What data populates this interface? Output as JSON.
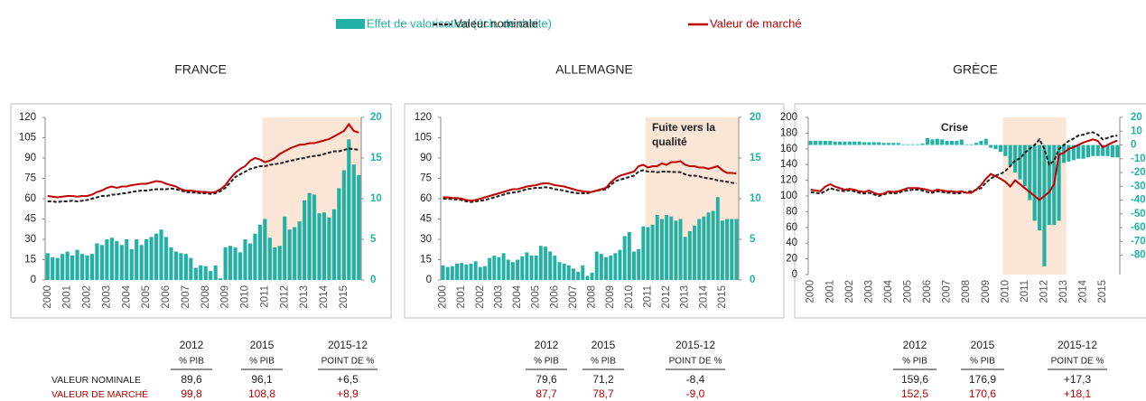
{
  "chart_data": [
    {
      "type": "combo",
      "title": "FRANCE",
      "categories": [
        "2000",
        null,
        null,
        null,
        "2001",
        null,
        null,
        null,
        "2002",
        null,
        null,
        null,
        "2003",
        null,
        null,
        null,
        "2004",
        null,
        null,
        null,
        "2005",
        null,
        null,
        null,
        "2006",
        null,
        null,
        null,
        "2007",
        null,
        null,
        null,
        "2008",
        null,
        null,
        null,
        "2009",
        null,
        null,
        null,
        "2010",
        null,
        null,
        null,
        "2011",
        null,
        null,
        null,
        "2012",
        null,
        null,
        null,
        "2013",
        null,
        null,
        null,
        "2014",
        null,
        null,
        null,
        "2015",
        null,
        null,
        null
      ],
      "ylim": [
        0,
        120
      ],
      "yticks": [
        0,
        15,
        30,
        45,
        60,
        75,
        90,
        105,
        120
      ],
      "y2lim": [
        0,
        20
      ],
      "y2ticks": [
        0,
        5,
        10,
        15,
        20
      ],
      "series": [
        {
          "name": "Effet de valorisation (éch. de droite)",
          "type": "bar",
          "axis": "y2",
          "color": "#22b2a5",
          "values": [
            3.3,
            2.8,
            2.7,
            3.2,
            3.5,
            3.0,
            3.7,
            3.2,
            3.0,
            3.2,
            4.5,
            4.3,
            5.0,
            5.2,
            4.8,
            4.3,
            5.0,
            3.8,
            5.0,
            4.3,
            5.0,
            5.3,
            5.7,
            6.2,
            5.3,
            4.0,
            3.5,
            3.3,
            3.2,
            2.7,
            1.5,
            1.8,
            1.7,
            1.1,
            1.8,
            0.2,
            4.0,
            4.2,
            4.0,
            3.4,
            5.0,
            4.5,
            5.7,
            6.8,
            7.5,
            5.2,
            4.0,
            4.2,
            7.8,
            6.2,
            6.5,
            7.2,
            9.8,
            10.7,
            10.5,
            8.2,
            8.3,
            7.7,
            8.7,
            11.3,
            13.5,
            17.3,
            14.2,
            12.9
          ]
        },
        {
          "name": "Valeur nominale",
          "type": "line",
          "dash": true,
          "color": "#222222",
          "values": [
            58,
            58,
            57.5,
            58,
            58,
            58.5,
            58,
            58.5,
            59,
            60,
            61,
            62,
            62,
            63,
            63,
            64,
            64,
            65,
            65.5,
            66,
            66,
            66.5,
            67,
            67,
            67,
            67.5,
            67,
            66,
            65,
            64.5,
            64.5,
            64,
            64,
            63.5,
            64,
            65.5,
            68,
            72,
            76,
            78,
            80,
            82,
            83,
            84,
            84,
            85,
            85.5,
            86,
            87,
            88,
            88.5,
            89.6,
            90,
            91,
            91.5,
            92,
            93,
            94,
            95,
            95,
            96,
            97,
            96.5,
            96.1
          ]
        },
        {
          "name": "Valeur de marché",
          "type": "line",
          "color": "#c00000",
          "values": [
            62,
            61.5,
            61,
            61.5,
            62,
            62,
            61.5,
            62,
            62,
            63,
            65,
            66,
            68,
            69,
            68,
            69,
            69,
            70,
            70.5,
            71,
            71,
            72,
            73,
            72.5,
            71,
            70,
            69,
            67,
            66,
            66,
            65.5,
            65,
            65,
            64.5,
            65,
            67,
            70,
            75,
            79,
            82,
            84,
            88,
            90,
            89,
            87,
            88,
            90,
            93,
            95,
            97,
            98.5,
            99.8,
            100,
            101,
            101,
            102,
            103,
            104,
            106,
            108,
            110,
            115,
            110,
            108.8
          ]
        }
      ]
    },
    {
      "type": "combo",
      "title": "ALLEMAGNE",
      "annotation": "Fuite vers la qualité",
      "categories": [
        "2000",
        null,
        null,
        null,
        "2001",
        null,
        null,
        null,
        "2002",
        null,
        null,
        null,
        "2003",
        null,
        null,
        null,
        "2004",
        null,
        null,
        null,
        "2005",
        null,
        null,
        null,
        "2006",
        null,
        null,
        null,
        "2007",
        null,
        null,
        null,
        "2008",
        null,
        null,
        null,
        "2009",
        null,
        null,
        null,
        "2010",
        null,
        null,
        null,
        "2011",
        null,
        null,
        null,
        "2012",
        null,
        null,
        null,
        "2013",
        null,
        null,
        null,
        "2014",
        null,
        null,
        null,
        "2015",
        null,
        null,
        null
      ],
      "ylim": [
        0,
        120
      ],
      "yticks": [
        0,
        15,
        30,
        45,
        60,
        75,
        90,
        105,
        120
      ],
      "y2lim": [
        0,
        20
      ],
      "y2ticks": [
        0,
        5,
        10,
        15,
        20
      ],
      "series": [
        {
          "name": "Effet de valorisation (éch. de droite)",
          "type": "bar",
          "axis": "y2",
          "color": "#22b2a5",
          "values": [
            1.8,
            1.6,
            1.7,
            2.0,
            2.1,
            1.9,
            2.0,
            2.3,
            1.6,
            1.7,
            2.7,
            3.0,
            2.8,
            3.3,
            2.5,
            2.2,
            2.5,
            2.9,
            3.4,
            3.0,
            3.0,
            4.2,
            4.1,
            3.5,
            3.0,
            2.2,
            2.0,
            1.8,
            1.4,
            1.0,
            1.8,
            0.5,
            0.9,
            3.5,
            3.2,
            2.8,
            3.0,
            3.3,
            3.7,
            5.4,
            5.9,
            3.5,
            3.8,
            6.6,
            6.5,
            6.8,
            8.0,
            7.5,
            8.0,
            7.8,
            7.3,
            7.5,
            5.3,
            6.0,
            6.7,
            7.5,
            7.8,
            8.3,
            8.5,
            10.2,
            7.3,
            7.5,
            7.5,
            7.5
          ]
        },
        {
          "name": "Valeur nominale",
          "type": "line",
          "dash": true,
          "color": "#222222",
          "values": [
            60,
            60,
            59.5,
            59.5,
            59,
            58,
            57.5,
            58,
            58.5,
            59,
            60,
            61,
            62,
            63,
            64,
            64.5,
            65,
            66,
            67,
            67.5,
            68,
            68,
            68.5,
            68,
            67,
            66.5,
            66,
            65,
            64.5,
            64,
            64,
            64,
            65,
            66,
            66.5,
            67,
            70,
            73,
            74,
            75,
            76,
            77,
            80,
            81,
            80,
            80,
            79.5,
            80,
            80,
            79.8,
            79.7,
            79.6,
            78,
            77,
            77,
            76.5,
            75.5,
            75,
            74.5,
            73.5,
            73,
            72.5,
            71.8,
            71.2
          ]
        },
        {
          "name": "Valeur de marché",
          "type": "line",
          "color": "#c00000",
          "values": [
            61,
            61,
            60.5,
            60.5,
            60,
            59,
            58.5,
            59,
            60,
            61,
            62,
            63,
            64,
            65,
            66,
            67,
            67,
            68,
            69,
            69.5,
            70,
            71,
            71.5,
            71,
            70,
            69.5,
            69,
            68,
            67,
            66,
            65.5,
            65,
            65,
            66,
            67,
            68,
            72,
            75,
            77,
            78,
            79,
            80,
            84,
            85,
            83,
            84,
            84,
            86,
            85,
            87,
            87,
            87.7,
            85,
            84,
            84,
            83,
            83,
            82,
            83,
            84,
            81,
            79,
            79,
            78.7
          ]
        }
      ]
    },
    {
      "type": "combo",
      "title": "GRÈCE",
      "annotation": "Crise",
      "categories": [
        "2000",
        null,
        null,
        null,
        "2001",
        null,
        null,
        null,
        "2002",
        null,
        null,
        null,
        "2003",
        null,
        null,
        null,
        "2004",
        null,
        null,
        null,
        "2005",
        null,
        null,
        null,
        "2006",
        null,
        null,
        null,
        "2007",
        null,
        null,
        null,
        "2008",
        null,
        null,
        null,
        "2009",
        null,
        null,
        null,
        "2010",
        null,
        null,
        null,
        "2011",
        null,
        null,
        null,
        "2012",
        null,
        null,
        null,
        "2013",
        null,
        null,
        null,
        "2014",
        null,
        null,
        null,
        "2015",
        null,
        null,
        null
      ],
      "ylim": [
        0,
        200
      ],
      "yticks": [
        0,
        20,
        40,
        60,
        80,
        100,
        120,
        140,
        160,
        180,
        200
      ],
      "y2lim": [
        -94,
        20
      ],
      "y2ticks": [
        -80,
        -70,
        -60,
        -50,
        -40,
        -30,
        -20,
        -10,
        0,
        10,
        20
      ],
      "series": [
        {
          "name": "Effet de valorisation (éch. de droite)",
          "type": "bar",
          "axis": "y2",
          "color": "#22b2a5",
          "values": [
            3,
            3,
            3,
            3,
            3,
            2.5,
            2.5,
            2.5,
            2.5,
            2.5,
            2.5,
            2,
            2,
            2,
            2,
            1.5,
            1.5,
            1.5,
            1.5,
            0.5,
            0.5,
            0.5,
            0.5,
            1,
            5,
            4,
            4.5,
            4,
            3,
            3,
            3,
            4,
            0.5,
            0.5,
            1.5,
            3,
            4.5,
            -2,
            -3,
            -5,
            -8,
            -15,
            -20,
            -25,
            -30,
            -40,
            -55,
            -62,
            -88,
            -58,
            -58,
            -55,
            -13,
            -12,
            -11,
            -10,
            -10,
            -9,
            -8,
            -8,
            -8,
            -8,
            -9,
            -9
          ]
        },
        {
          "name": "Valeur nominale",
          "type": "line",
          "dash": true,
          "color": "#222222",
          "values": [
            105,
            104,
            103,
            106,
            110,
            108,
            107,
            106,
            107,
            106,
            104,
            103,
            104,
            102,
            100,
            102,
            104,
            103,
            104,
            106,
            107,
            108,
            108,
            107,
            105,
            104,
            106,
            105,
            104,
            104,
            103,
            104,
            105,
            106,
            108,
            110,
            117,
            122,
            126,
            128,
            132,
            138,
            145,
            148,
            155,
            160,
            165,
            172,
            160,
            140,
            145,
            159.6,
            165,
            170,
            173,
            177,
            178,
            180,
            181,
            178,
            172,
            174,
            176,
            176.9
          ]
        },
        {
          "name": "Valeur de marché",
          "type": "line",
          "color": "#c00000",
          "values": [
            108,
            107,
            106,
            112,
            115,
            112,
            110,
            108,
            109,
            108,
            106,
            105,
            107,
            104,
            102,
            103,
            106,
            105,
            106,
            108,
            110,
            110,
            110,
            109,
            108,
            106,
            108,
            107,
            106,
            106,
            105,
            106,
            104,
            104,
            108,
            114,
            122,
            128,
            125,
            122,
            118,
            112,
            120,
            115,
            110,
            105,
            100,
            95,
            100,
            105,
            115,
            152.5,
            155,
            160,
            162,
            165,
            168,
            170,
            172,
            170,
            162,
            165,
            168,
            170.6
          ]
        }
      ]
    }
  ],
  "tables": [
    {
      "header": [
        [
          "2012",
          "% PIB"
        ],
        [
          "2015",
          "% PIB"
        ],
        [
          "2015-12",
          "POINT DE %"
        ]
      ],
      "rows": [
        {
          "label": "VALEUR NOMINALE",
          "values": [
            "89,6",
            "96,1",
            "+6,5"
          ]
        },
        {
          "label": "VALEUR DE MARCHÉ",
          "values": [
            "99,8",
            "108,8",
            "+8,9"
          ]
        }
      ]
    },
    {
      "header": [
        [
          "2012",
          "% PIB"
        ],
        [
          "2015",
          "% PIB"
        ],
        [
          "2015-12",
          "POINT DE %"
        ]
      ],
      "rows": [
        {
          "values": [
            "79,6",
            "71,2",
            "-8,4"
          ]
        },
        {
          "values": [
            "87,7",
            "78,7",
            "-9,0"
          ]
        }
      ]
    },
    {
      "header": [
        [
          "2012",
          "% PIB"
        ],
        [
          "2015",
          "% PIB"
        ],
        [
          "2015-12",
          "POINT DE %"
        ]
      ],
      "rows": [
        {
          "values": [
            "159,6",
            "176,9",
            "+17,3"
          ]
        },
        {
          "values": [
            "152,5",
            "170,6",
            "+18,1"
          ]
        }
      ]
    }
  ]
}
